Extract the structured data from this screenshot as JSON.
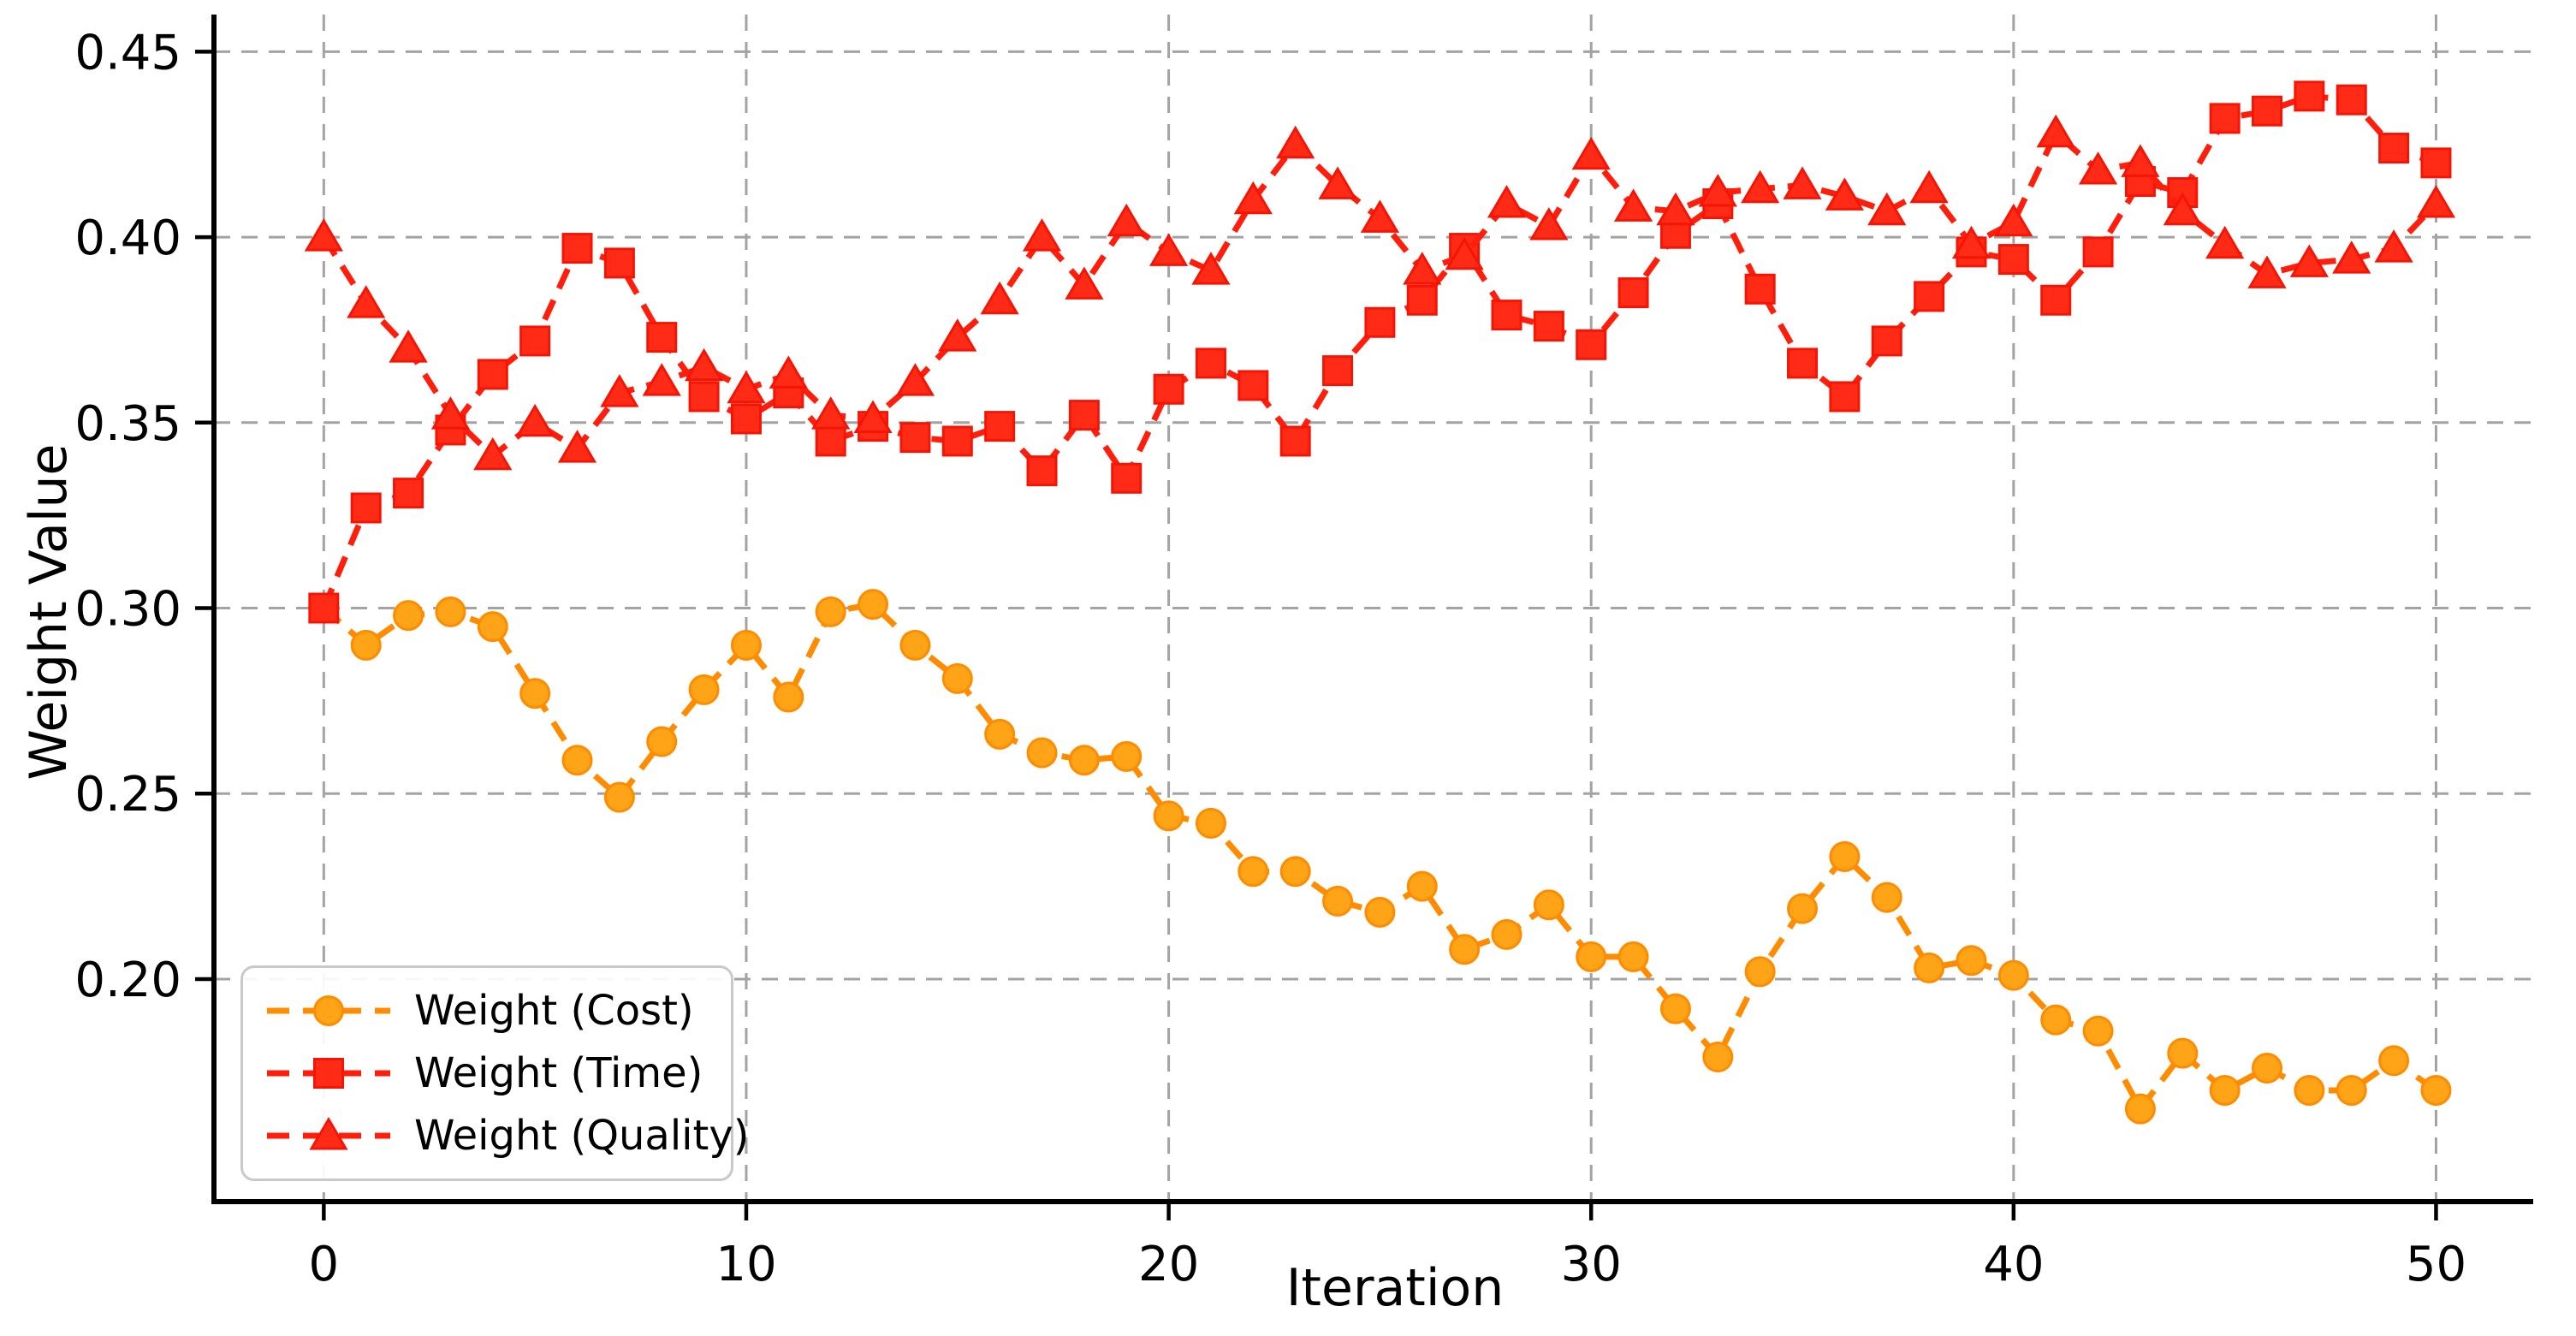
{
  "chart_data": {
    "type": "line",
    "title": "",
    "xlabel": "Iteration",
    "ylabel": "Weight Value",
    "grid": true,
    "grid_color": "#a3a3a3",
    "background": "#ffffff",
    "legend_position": "lower-left",
    "xlim": [
      -2.6,
      52.3
    ],
    "ylim": [
      0.14,
      0.46
    ],
    "x_ticks": [
      0,
      10,
      20,
      30,
      40,
      50
    ],
    "y_ticks": [
      0.45,
      0.4,
      0.35,
      0.3,
      0.25,
      0.2
    ],
    "x": [
      0,
      1,
      2,
      3,
      4,
      5,
      6,
      7,
      8,
      9,
      10,
      11,
      12,
      13,
      14,
      15,
      16,
      17,
      18,
      19,
      20,
      21,
      22,
      23,
      24,
      25,
      26,
      27,
      28,
      29,
      30,
      31,
      32,
      33,
      34,
      35,
      36,
      37,
      38,
      39,
      40,
      41,
      42,
      43,
      44,
      45,
      46,
      47,
      48,
      49,
      50
    ],
    "series": [
      {
        "name": "Weight (Cost)",
        "marker": "circle",
        "line_color": "#ff8c00",
        "marker_fill": "#ffa416",
        "marker_edge": "#ff8c00",
        "values": [
          0.3,
          0.29,
          0.298,
          0.299,
          0.295,
          0.277,
          0.259,
          0.249,
          0.264,
          0.278,
          0.29,
          0.276,
          0.299,
          0.301,
          0.29,
          0.281,
          0.266,
          0.261,
          0.259,
          0.26,
          0.244,
          0.242,
          0.229,
          0.229,
          0.221,
          0.218,
          0.225,
          0.208,
          0.212,
          0.22,
          0.206,
          0.206,
          0.192,
          0.179,
          0.202,
          0.219,
          0.233,
          0.222,
          0.203,
          0.205,
          0.201,
          0.189,
          0.186,
          0.165,
          0.18,
          0.17,
          0.176,
          0.17,
          0.17,
          0.178,
          0.17
        ]
      },
      {
        "name": "Weight (Time)",
        "marker": "square",
        "line_color": "#ff1d0c",
        "marker_fill": "#ff2b16",
        "marker_edge": "#f51505",
        "values": [
          0.3,
          0.327,
          0.331,
          0.348,
          0.363,
          0.372,
          0.397,
          0.393,
          0.373,
          0.357,
          0.351,
          0.358,
          0.345,
          0.349,
          0.346,
          0.345,
          0.349,
          0.337,
          0.352,
          0.335,
          0.359,
          0.366,
          0.36,
          0.345,
          0.364,
          0.377,
          0.383,
          0.397,
          0.379,
          0.376,
          0.371,
          0.385,
          0.401,
          0.409,
          0.386,
          0.366,
          0.357,
          0.372,
          0.384,
          0.396,
          0.394,
          0.383,
          0.396,
          0.415,
          0.412,
          0.432,
          0.434,
          0.438,
          0.437,
          0.424,
          0.42
        ]
      },
      {
        "name": "Weight (Quality)",
        "marker": "triangle",
        "line_color": "#ff1d0c",
        "marker_fill": "#ff2b16",
        "marker_edge": "#f51505",
        "values": [
          0.4,
          0.382,
          0.37,
          0.352,
          0.341,
          0.35,
          0.343,
          0.358,
          0.361,
          0.365,
          0.359,
          0.363,
          0.352,
          0.351,
          0.361,
          0.373,
          0.383,
          0.4,
          0.387,
          0.404,
          0.396,
          0.391,
          0.41,
          0.425,
          0.414,
          0.405,
          0.391,
          0.395,
          0.409,
          0.403,
          0.422,
          0.408,
          0.407,
          0.412,
          0.413,
          0.414,
          0.411,
          0.407,
          0.413,
          0.398,
          0.404,
          0.428,
          0.418,
          0.42,
          0.407,
          0.398,
          0.39,
          0.393,
          0.394,
          0.397,
          0.409
        ]
      }
    ]
  }
}
